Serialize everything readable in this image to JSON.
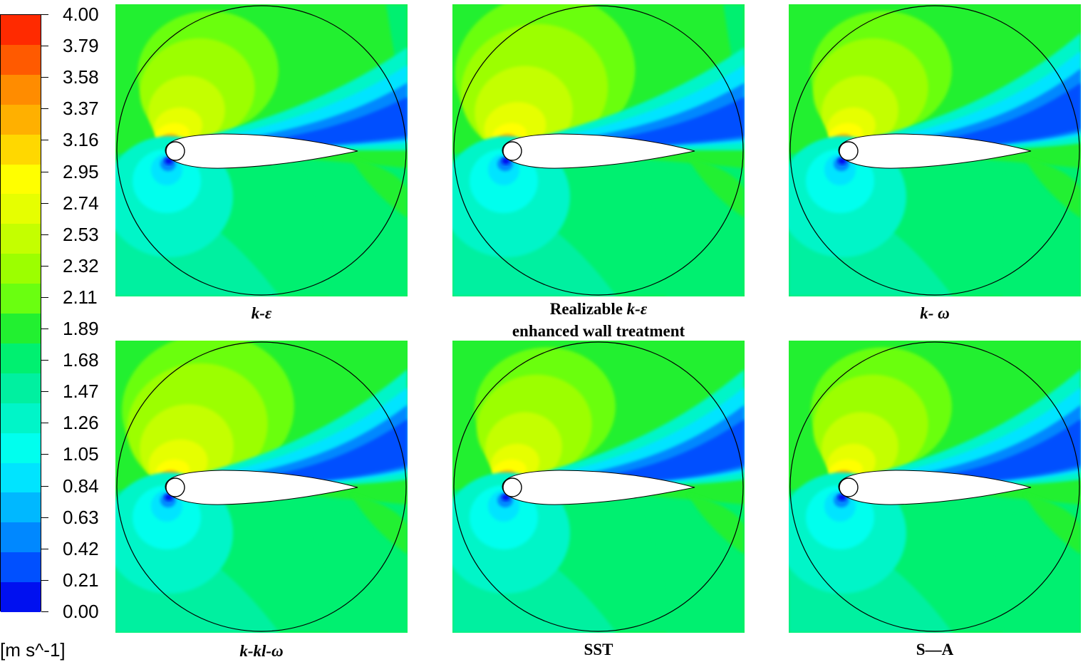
{
  "legend": {
    "labels": [
      "4.00",
      "3.79",
      "3.58",
      "3.37",
      "3.16",
      "2.95",
      "2.74",
      "2.53",
      "2.32",
      "2.11",
      "1.89",
      "1.68",
      "1.47",
      "1.26",
      "1.05",
      "0.84",
      "0.63",
      "0.42",
      "0.21",
      "0.00"
    ],
    "colors": [
      "#ff2a00",
      "#ff5a00",
      "#ff8c00",
      "#ffb000",
      "#ffd800",
      "#ffff00",
      "#e6ff00",
      "#c4ff00",
      "#9cff00",
      "#6aff10",
      "#22f030",
      "#00f070",
      "#00f0a0",
      "#00f5c8",
      "#00ffee",
      "#00e4ff",
      "#00b8ff",
      "#0088ff",
      "#0050ff",
      "#0010f0"
    ],
    "unit": "[m s^-1]"
  },
  "panels": [
    {
      "id": "k-eps",
      "caption_line1": "k-ε",
      "caption_line2": ""
    },
    {
      "id": "realizable",
      "caption_plain": "Realizable ",
      "caption_italic": "k-ε",
      "caption_line2": "enhanced wall treatment"
    },
    {
      "id": "k-omega",
      "caption_line1": "k- ω",
      "caption_line2": ""
    },
    {
      "id": "kkl-omega",
      "caption_line1": "k-kl-ω",
      "caption_line2": ""
    },
    {
      "id": "sst",
      "caption_line1": "SST",
      "caption_line2": ""
    },
    {
      "id": "sa",
      "caption_line1": "S—A",
      "caption_line2": ""
    }
  ]
}
